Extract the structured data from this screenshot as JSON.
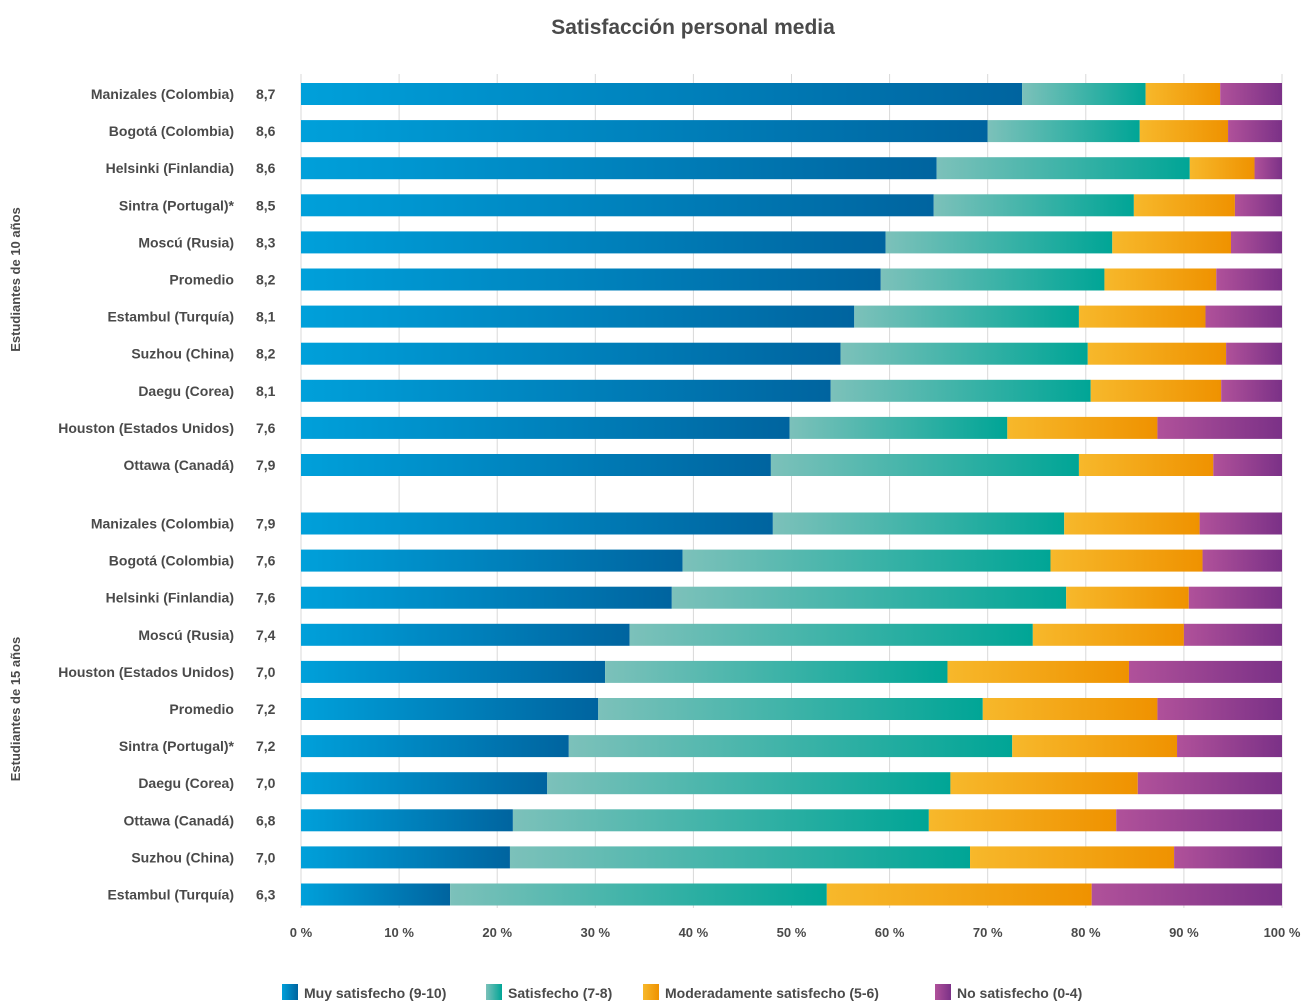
{
  "chart_data": {
    "type": "bar",
    "orientation": "horizontal",
    "stacked": true,
    "title": "Satisfacción personal media",
    "xlim": [
      0,
      100
    ],
    "x_ticks": [
      "0 %",
      "10 %",
      "20 %",
      "30 %",
      "40 %",
      "50 %",
      "60 %",
      "70 %",
      "80 %",
      "90 %",
      "100 %"
    ],
    "grid": true,
    "legend_position": "bottom",
    "series": [
      {
        "name": "Muy satisfecho (9-10)",
        "color": "#0073b0"
      },
      {
        "name": "Satisfecho (7-8)",
        "color": "#4fb3a9"
      },
      {
        "name": "Moderadamente satisfecho (5-6)",
        "color": "#f29f05"
      },
      {
        "name": "No satisfecho (0-4)",
        "color": "#8e3d8f"
      }
    ],
    "groups": [
      {
        "label": "Estudiantes de 10 años",
        "rows": [
          {
            "city": "Manizales (Colombia)",
            "score": "8,7",
            "values": [
              73.5,
              12.6,
              7.6,
              6.3
            ]
          },
          {
            "city": "Bogotá (Colombia)",
            "score": "8,6",
            "values": [
              70.0,
              15.5,
              9.0,
              5.5
            ]
          },
          {
            "city": "Helsinki (Finlandia)",
            "score": "8,6",
            "values": [
              64.8,
              25.8,
              6.6,
              2.8
            ]
          },
          {
            "city": "Sintra (Portugal)*",
            "score": "8,5",
            "values": [
              64.5,
              20.4,
              10.3,
              4.8
            ]
          },
          {
            "city": "Moscú (Rusia)",
            "score": "8,3",
            "values": [
              59.6,
              23.1,
              12.1,
              5.2
            ]
          },
          {
            "city": "Promedio",
            "score": "8,2",
            "values": [
              59.1,
              22.8,
              11.4,
              6.7
            ]
          },
          {
            "city": "Estambul (Turquía)",
            "score": "8,1",
            "values": [
              56.4,
              22.9,
              12.9,
              7.8
            ]
          },
          {
            "city": "Suzhou (China)",
            "score": "8,2",
            "values": [
              55.0,
              25.2,
              14.1,
              5.7
            ]
          },
          {
            "city": "Daegu (Corea)",
            "score": "8,1",
            "values": [
              54.0,
              26.5,
              13.3,
              6.2
            ]
          },
          {
            "city": "Houston (Estados Unidos)",
            "score": "7,6",
            "values": [
              49.8,
              22.2,
              15.3,
              12.7
            ]
          },
          {
            "city": "Ottawa (Canadá)",
            "score": "7,9",
            "values": [
              47.9,
              31.4,
              13.7,
              7.0
            ]
          }
        ]
      },
      {
        "label": "Estudiantes de 15 años",
        "rows": [
          {
            "city": "Manizales (Colombia)",
            "score": "7,9",
            "values": [
              48.1,
              29.7,
              13.8,
              8.4
            ]
          },
          {
            "city": "Bogotá (Colombia)",
            "score": "7,6",
            "values": [
              38.9,
              37.5,
              15.5,
              8.1
            ]
          },
          {
            "city": "Helsinki (Finlandia)",
            "score": "7,6",
            "values": [
              37.8,
              40.2,
              12.5,
              9.5
            ]
          },
          {
            "city": "Moscú (Rusia)",
            "score": "7,4",
            "values": [
              33.5,
              41.1,
              15.4,
              10.0
            ]
          },
          {
            "city": "Houston (Estados Unidos)",
            "score": "7,0",
            "values": [
              31.0,
              34.9,
              18.5,
              15.6
            ]
          },
          {
            "city": "Promedio",
            "score": "7,2",
            "values": [
              30.3,
              39.2,
              17.8,
              12.7
            ]
          },
          {
            "city": "Sintra (Portugal)*",
            "score": "7,2",
            "values": [
              27.3,
              45.2,
              16.8,
              10.7
            ]
          },
          {
            "city": "Daegu (Corea)",
            "score": "7,0",
            "values": [
              25.1,
              41.1,
              19.1,
              14.7
            ]
          },
          {
            "city": "Ottawa (Canadá)",
            "score": "6,8",
            "values": [
              21.6,
              42.4,
              19.1,
              16.9
            ]
          },
          {
            "city": "Suzhou (China)",
            "score": "7,0",
            "values": [
              21.3,
              46.9,
              20.8,
              11.0
            ]
          },
          {
            "city": "Estambul (Turquía)",
            "score": "6,3",
            "values": [
              15.2,
              38.4,
              27.0,
              19.4
            ]
          }
        ]
      }
    ]
  }
}
